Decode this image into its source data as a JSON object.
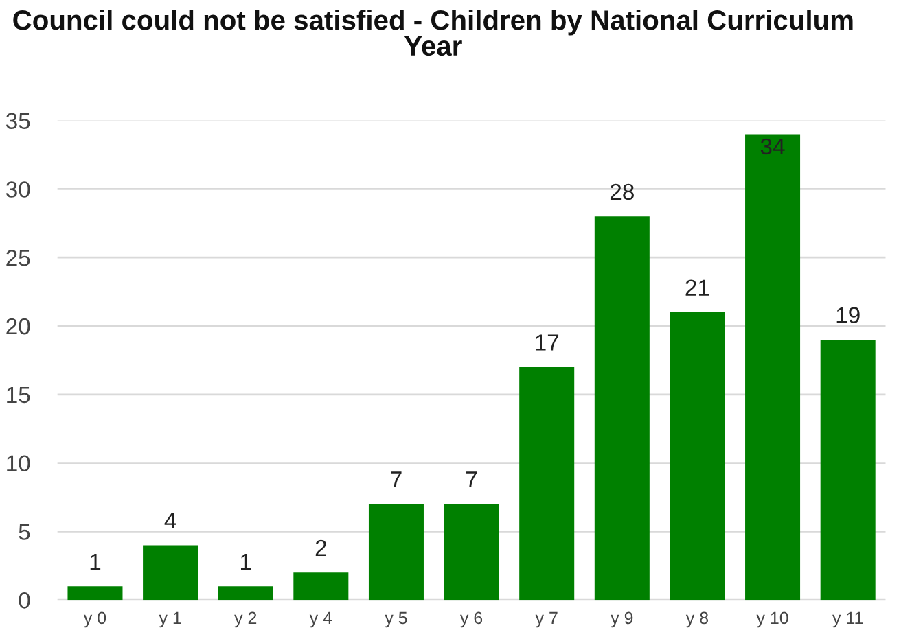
{
  "chart_data": {
    "type": "bar",
    "title": "Council could not be satisfied - Children by National Curriculum Year",
    "categories": [
      "y 0",
      "y 1",
      "y 2",
      "y 4",
      "y 5",
      "y 6",
      "y 7",
      "y 9",
      "y 8",
      "y 10",
      "y 11"
    ],
    "values": [
      1,
      4,
      1,
      2,
      7,
      7,
      17,
      28,
      21,
      34,
      19
    ],
    "color": "#008000",
    "ylim": [
      0,
      35
    ],
    "yticks": [
      0,
      5,
      10,
      15,
      20,
      25,
      30,
      35
    ],
    "grid": "y",
    "data_labels": true
  }
}
